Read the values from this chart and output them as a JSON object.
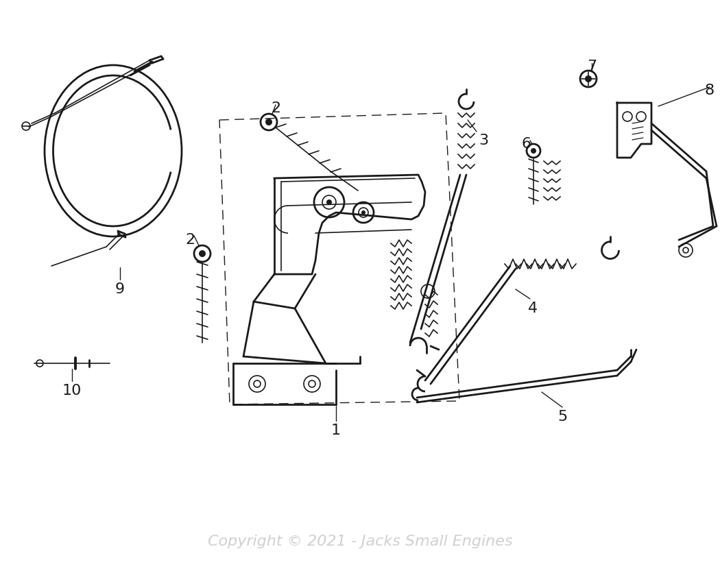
{
  "bg_color": "#ffffff",
  "line_color": "#1a1a1a",
  "copyright_text": "Copyright © 2021 - Jacks Small Engines",
  "label_fontsize": 16,
  "figsize": [
    10.5,
    8.33
  ],
  "dpi": 100
}
